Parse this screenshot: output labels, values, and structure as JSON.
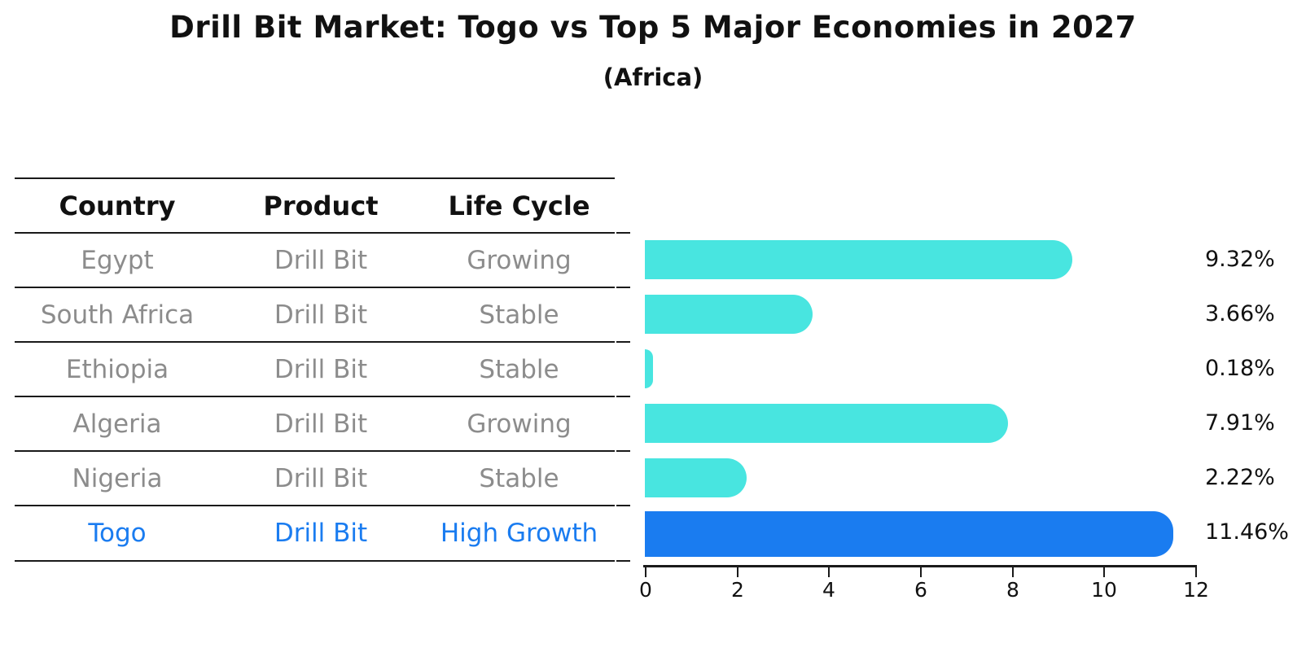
{
  "title": "Drill Bit Market: Togo vs Top 5 Major Economies in 2027",
  "subtitle": "(Africa)",
  "table": {
    "headers": [
      "Country",
      "Product",
      "Life Cycle"
    ],
    "rows": [
      {
        "country": "Egypt",
        "product": "Drill Bit",
        "life_cycle": "Growing",
        "highlight": false
      },
      {
        "country": "South Africa",
        "product": "Drill Bit",
        "life_cycle": "Stable",
        "highlight": false
      },
      {
        "country": "Ethiopia",
        "product": "Drill Bit",
        "life_cycle": "Stable",
        "highlight": false
      },
      {
        "country": "Algeria",
        "product": "Drill Bit",
        "life_cycle": "Growing",
        "highlight": false
      },
      {
        "country": "Nigeria",
        "product": "Drill Bit",
        "life_cycle": "Stable",
        "highlight": false
      },
      {
        "country": "Togo",
        "product": "Drill Bit",
        "life_cycle": "High Growth",
        "highlight": true
      }
    ]
  },
  "chart_data": {
    "type": "bar",
    "orientation": "horizontal",
    "title": "Drill Bit Market: Togo vs Top 5 Major Economies in 2027",
    "subtitle": "(Africa)",
    "categories": [
      "Egypt",
      "South Africa",
      "Ethiopia",
      "Algeria",
      "Nigeria",
      "Togo"
    ],
    "values": [
      9.32,
      3.66,
      0.18,
      7.91,
      2.22,
      11.46
    ],
    "value_labels": [
      "9.32%",
      "3.66%",
      "0.18%",
      "7.91%",
      "2.22%",
      "11.46%"
    ],
    "xlabel": "",
    "ylabel": "",
    "xlim": [
      0,
      12
    ],
    "x_ticks": [
      "0",
      "2",
      "4",
      "6",
      "8",
      "10",
      "12"
    ],
    "grid": false,
    "legend": "none",
    "bar_color": "#48e5e0",
    "highlight_color": "#1a7cf0",
    "highlight_index": 5,
    "highlight_edge_style": "dotted"
  },
  "colors": {
    "row_text": "#8c8c8c",
    "header_text": "#111111",
    "highlight_text": "#1a7cf0",
    "axis": "#1a1a1a"
  }
}
